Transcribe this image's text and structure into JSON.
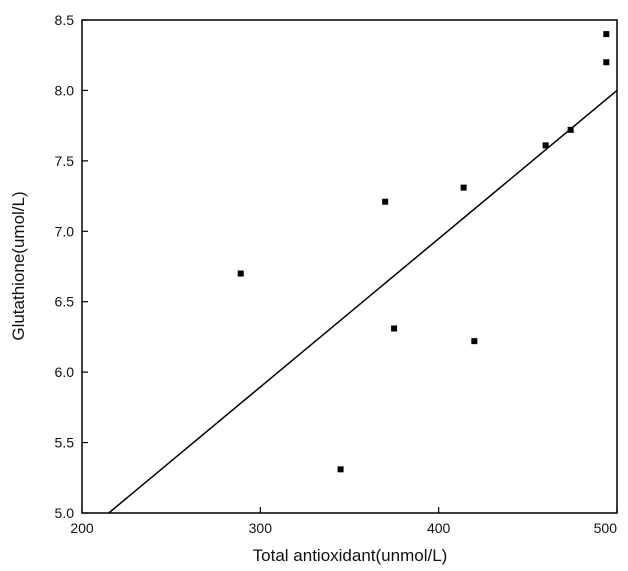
{
  "chart_data": {
    "type": "scatter",
    "xlabel": "Total antioxidant(unmol/L)",
    "ylabel": "Glutathione(umol/L)",
    "xlim": [
      200,
      500
    ],
    "ylim": [
      5.0,
      8.5
    ],
    "x_ticks": [
      200,
      300,
      400,
      500
    ],
    "y_ticks": [
      5.0,
      5.5,
      6.0,
      6.5,
      7.0,
      7.5,
      8.0,
      8.5
    ],
    "x_tick_labels": [
      "200",
      "300",
      "400",
      "500"
    ],
    "y_tick_labels": [
      "5.0",
      "5.5",
      "6.0",
      "6.5",
      "7.0",
      "7.5",
      "8.0",
      "8.5"
    ],
    "grid": false,
    "points": [
      {
        "x": 289,
        "y": 6.7
      },
      {
        "x": 345,
        "y": 5.31
      },
      {
        "x": 370,
        "y": 7.21
      },
      {
        "x": 375,
        "y": 6.31
      },
      {
        "x": 414,
        "y": 7.31
      },
      {
        "x": 420,
        "y": 6.22
      },
      {
        "x": 460,
        "y": 7.61
      },
      {
        "x": 474,
        "y": 7.72
      },
      {
        "x": 494,
        "y": 8.2
      },
      {
        "x": 494,
        "y": 8.4
      }
    ],
    "fit_line": {
      "x": [
        215,
        500
      ],
      "y": [
        4.97,
        8.0
      ]
    },
    "colors": {
      "points": "#000000",
      "line": "#000000",
      "axes": "#000000"
    }
  }
}
